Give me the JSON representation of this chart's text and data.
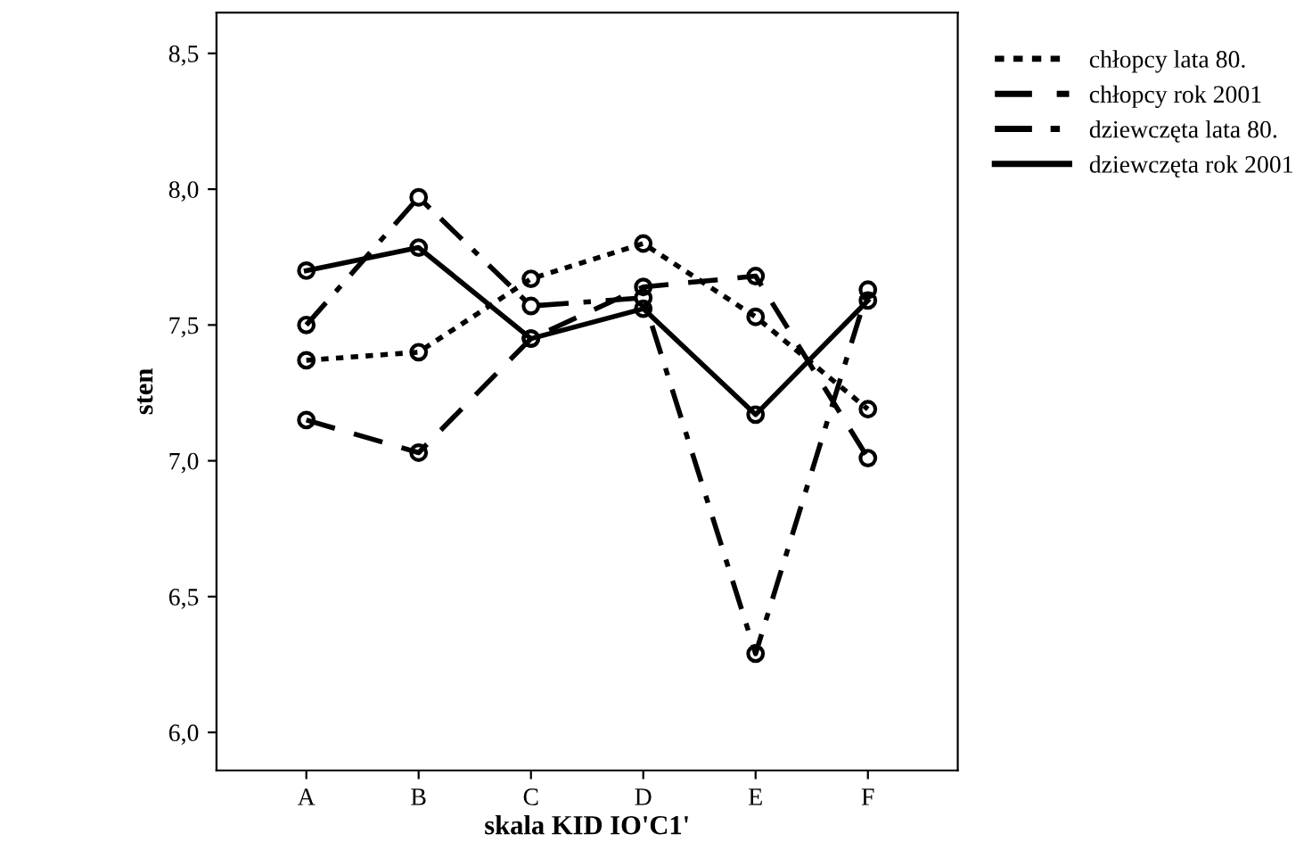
{
  "chart_data": {
    "type": "line",
    "xlabel": "skala KID IO'C1'",
    "ylabel": "sten",
    "categories": [
      "A",
      "B",
      "C",
      "D",
      "E",
      "F"
    ],
    "series": [
      {
        "name": "chłopcy lata 80.",
        "color": "#000000",
        "line_style": "dotted",
        "values": [
          7.37,
          7.4,
          7.67,
          7.8,
          7.53,
          7.19
        ]
      },
      {
        "name": "chłopcy rok 2001",
        "color": "#000000",
        "line_style": "dashed",
        "values": [
          7.15,
          7.03,
          7.45,
          7.64,
          7.68,
          7.01
        ]
      },
      {
        "name": "dziewczęta lata 80.",
        "color": "#000000",
        "line_style": "dashdot",
        "values": [
          7.5,
          7.97,
          7.57,
          7.6,
          6.29,
          7.63
        ]
      },
      {
        "name": "dziewczęta rok 2001",
        "color": "#000000",
        "line_style": "solid",
        "values": [
          7.7,
          7.785,
          7.45,
          7.56,
          7.17,
          7.59
        ]
      }
    ],
    "ylim": [
      5.86,
      8.65
    ],
    "yticks": [
      {
        "value": 6.0,
        "label": "6,0"
      },
      {
        "value": 6.5,
        "label": "6,5"
      },
      {
        "value": 7.0,
        "label": "7,0"
      },
      {
        "value": 7.5,
        "label": "7,5"
      },
      {
        "value": 8.0,
        "label": "8,0"
      },
      {
        "value": 8.5,
        "label": "8,5"
      }
    ],
    "marker": "circle",
    "grid": false,
    "legend": "top right"
  }
}
